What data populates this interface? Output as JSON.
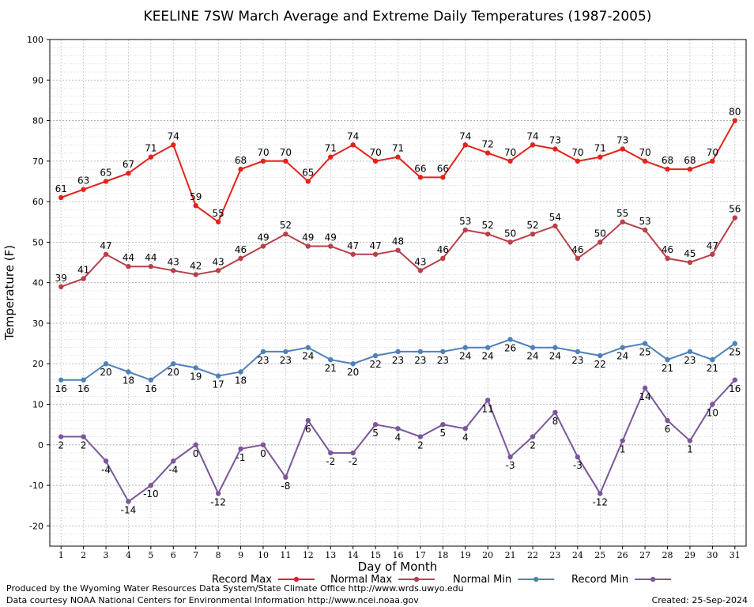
{
  "chart_data": {
    "type": "line",
    "title": "KEELINE 7SW March Average and Extreme Daily Temperatures (1987-2005)",
    "xlabel": "Day of Month",
    "ylabel": "Temperature (F)",
    "ylim": [
      -25,
      100
    ],
    "yticks": [
      -20,
      -10,
      0,
      10,
      20,
      30,
      40,
      50,
      60,
      70,
      80,
      90,
      100
    ],
    "x": [
      1,
      2,
      3,
      4,
      5,
      6,
      7,
      8,
      9,
      10,
      11,
      12,
      13,
      14,
      15,
      16,
      17,
      18,
      19,
      20,
      21,
      22,
      23,
      24,
      25,
      26,
      27,
      28,
      29,
      30,
      31
    ],
    "grid": true,
    "legend_position": "bottom",
    "series": [
      {
        "name": "Record Max",
        "color": "#e3231c",
        "values": [
          61,
          63,
          65,
          67,
          71,
          74,
          59,
          55,
          68,
          70,
          70,
          65,
          71,
          74,
          70,
          71,
          66,
          66,
          74,
          72,
          70,
          74,
          73,
          70,
          71,
          73,
          70,
          68,
          68,
          70,
          80
        ]
      },
      {
        "name": "Normal Max",
        "color": "#b8404b",
        "values": [
          39,
          41,
          47,
          44,
          44,
          43,
          42,
          43,
          46,
          49,
          52,
          49,
          49,
          47,
          47,
          48,
          43,
          46,
          53,
          52,
          50,
          52,
          54,
          46,
          50,
          55,
          53,
          46,
          45,
          47,
          56
        ]
      },
      {
        "name": "Normal Min",
        "color": "#4f81b8",
        "values": [
          16,
          16,
          20,
          18,
          16,
          20,
          19,
          17,
          18,
          23,
          23,
          24,
          21,
          20,
          22,
          23,
          23,
          23,
          24,
          24,
          26,
          24,
          24,
          23,
          22,
          24,
          25,
          21,
          23,
          21,
          25
        ]
      },
      {
        "name": "Record Min",
        "color": "#7b569a",
        "values": [
          2,
          2,
          -4,
          -14,
          -10,
          -4,
          0,
          -12,
          -1,
          0,
          -8,
          6,
          -2,
          -2,
          5,
          4,
          2,
          5,
          4,
          11,
          -3,
          2,
          8,
          -3,
          -12,
          1,
          14,
          6,
          1,
          10,
          16
        ]
      }
    ]
  },
  "footer": {
    "produced_by": "Produced by the Wyoming Water Resources Data System/State Climate Office http://www.wrds.uwyo.edu",
    "data_courtesy": "Data courtesy NOAA National Centers for Environmental Information http://www.ncei.noaa.gov",
    "created": "Created:  25-Sep-2024"
  }
}
